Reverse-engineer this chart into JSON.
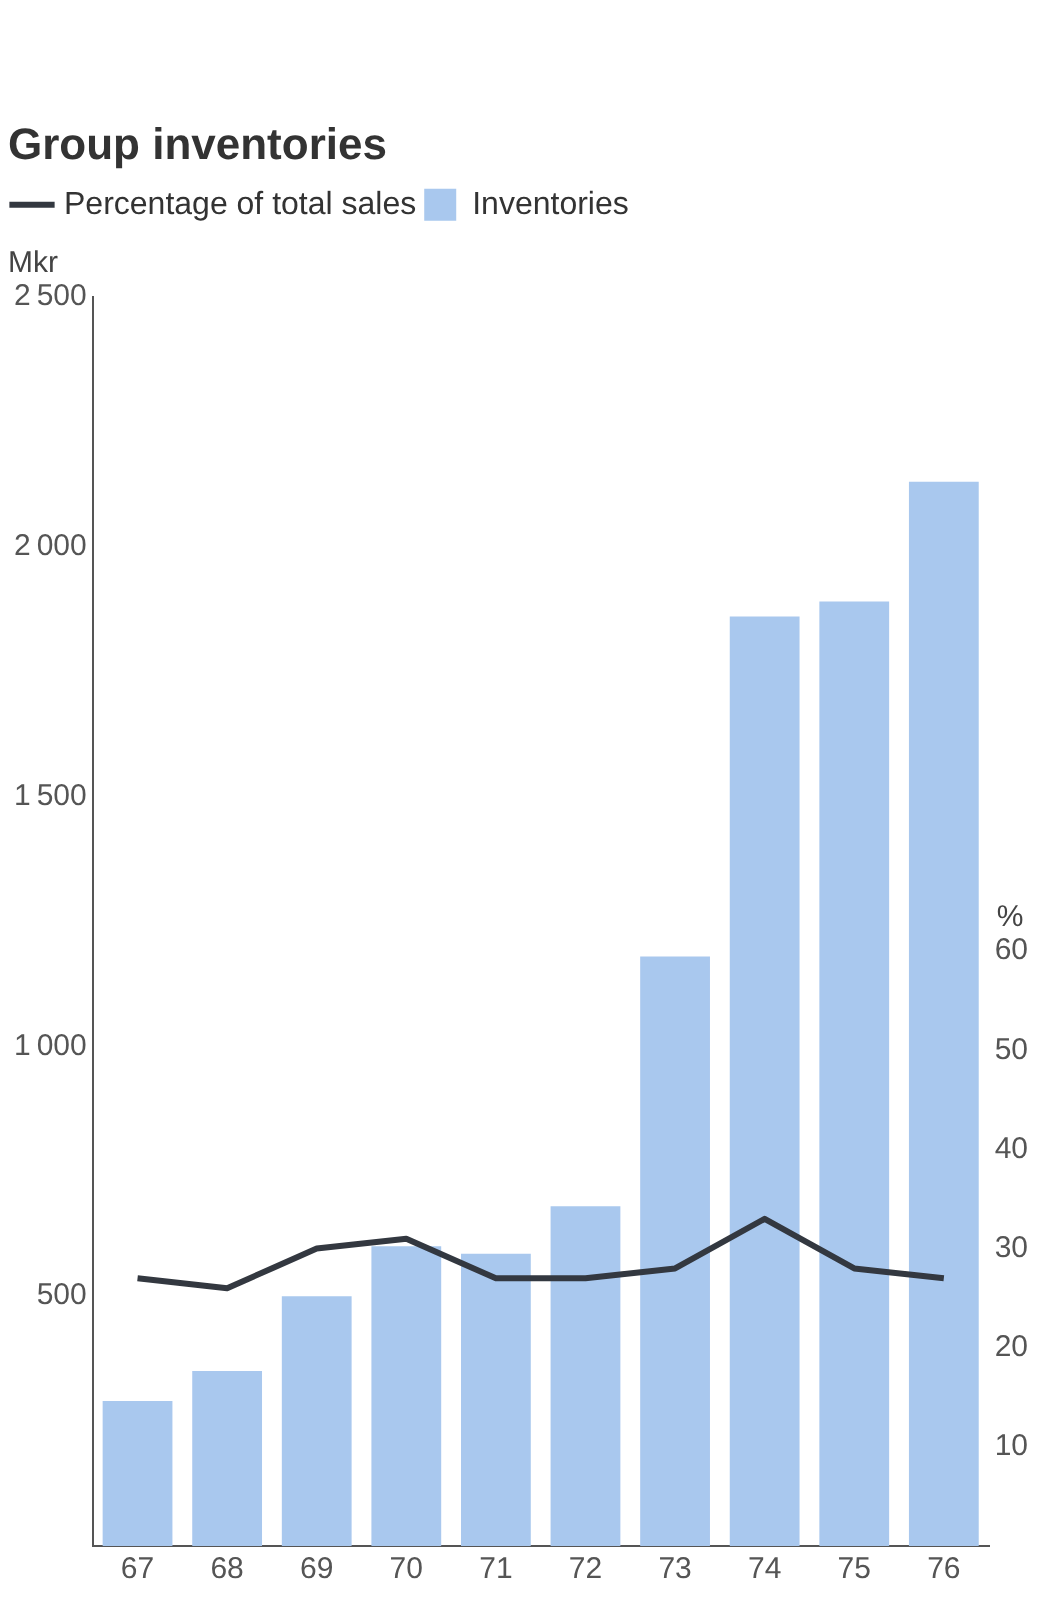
{
  "chart_data": {
    "type": "bar",
    "title": "Group inventories",
    "ylabel": "Mkr",
    "y2label": "%",
    "categories": [
      "67",
      "68",
      "69",
      "70",
      "71",
      "72",
      "73",
      "74",
      "75",
      "76"
    ],
    "series": [
      {
        "name": "Percentage of total sales",
        "type": "line",
        "axis": "y2",
        "color": "#333840",
        "values": [
          27,
          26,
          30,
          31,
          27,
          27,
          28,
          33,
          28,
          27
        ]
      },
      {
        "name": "Inventories",
        "color": "#a9c8ee",
        "values": [
          290,
          350,
          500,
          600,
          585,
          680,
          1180,
          1860,
          1890,
          2130
        ]
      }
    ],
    "ylim": [
      0,
      2500
    ],
    "yticks": [
      500,
      1000,
      1500,
      2000,
      2500
    ],
    "y2lim": [
      0,
      126
    ],
    "y2ticks": [
      10,
      20,
      30,
      40,
      50,
      60
    ],
    "grid": false,
    "legend": "top left",
    "marker": "none",
    "line_style": "solid"
  }
}
